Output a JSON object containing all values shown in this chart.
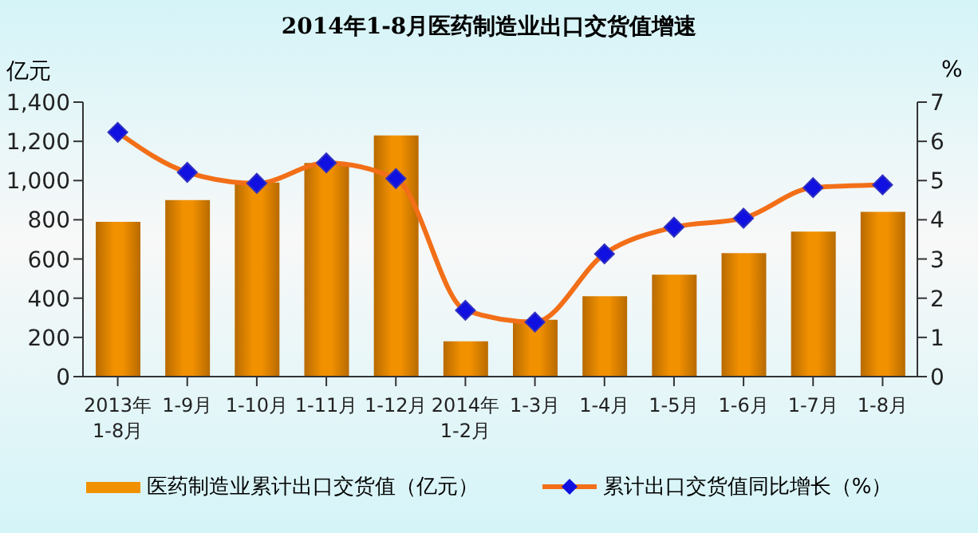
{
  "chart_data": {
    "type": "bar",
    "title": "2014年1-8月医药制造业出口交货值增速",
    "ylabel": "亿元",
    "y2label": "%",
    "categories": [
      "2013年\n1-8月",
      "1-9月",
      "1-10月",
      "1-11月",
      "1-12月",
      "2014年\n1-2月",
      "1-3月",
      "1-4月",
      "1-5月",
      "1-6月",
      "1-7月",
      "1-8月"
    ],
    "series": [
      {
        "name": "医药制造业累计出口交货值（亿元）",
        "color": "#f29100",
        "values": [
          790,
          900,
          990,
          1090,
          1230,
          180,
          290,
          410,
          520,
          630,
          740,
          840
        ]
      },
      {
        "name": "累计出口交货值同比增长（%）",
        "type": "line",
        "axis": "y2",
        "color": "#f26f18",
        "marker": "diamond",
        "values": [
          6.23,
          5.21,
          4.93,
          5.45,
          5.05,
          1.69,
          1.39,
          3.13,
          3.81,
          4.04,
          4.82,
          4.89
        ]
      }
    ],
    "ylim": [
      0,
      1400
    ],
    "yticks": [
      0,
      200,
      400,
      600,
      800,
      {
        "value": 1000,
        "label": "1,000"
      },
      {
        "value": 1200,
        "label": "1,200"
      },
      {
        "value": 1400,
        "label": "1,400"
      }
    ],
    "y2lim": [
      0,
      7
    ],
    "y2ticks": [
      0,
      1,
      2,
      3,
      4,
      5,
      6,
      7
    ],
    "grid": false,
    "legend": "bottom"
  }
}
